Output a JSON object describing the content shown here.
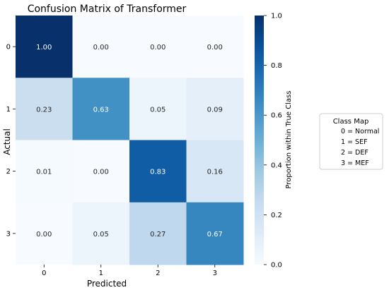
{
  "chart_data": {
    "type": "heatmap",
    "title": "Confusion Matrix of Transformer",
    "xlabel": "Predicted",
    "ylabel": "Actual",
    "x_categories": [
      "0",
      "1",
      "2",
      "3"
    ],
    "y_categories": [
      "0",
      "1",
      "2",
      "3"
    ],
    "values": [
      [
        1.0,
        0.0,
        0.0,
        0.0
      ],
      [
        0.23,
        0.63,
        0.05,
        0.09
      ],
      [
        0.01,
        0.0,
        0.83,
        0.16
      ],
      [
        0.0,
        0.05,
        0.27,
        0.67
      ]
    ],
    "colorbar": {
      "label": "Proportion within True Class",
      "range": [
        0.0,
        1.0
      ],
      "ticks": [
        "0.0",
        "0.2",
        "0.4",
        "0.6",
        "0.8",
        "1.0"
      ],
      "colormap": "Blues"
    },
    "legend": {
      "title": "Class Map",
      "entries": [
        "0 = Normal",
        "1 = SEF",
        "2 = DEF",
        "3 = MEF"
      ],
      "placement": "right"
    },
    "colors": {
      "low": "#f7fbff",
      "high": "#08306b"
    }
  }
}
